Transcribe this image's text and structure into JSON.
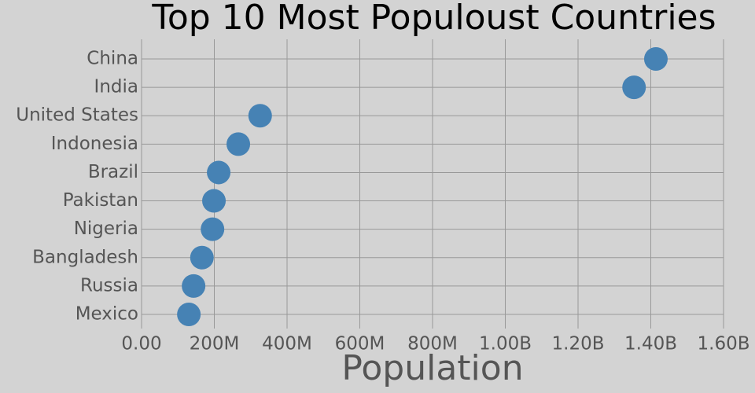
{
  "chart_data": {
    "type": "dot",
    "title": "Top 10 Most Populoust Countries",
    "x_label": "Population",
    "categories": [
      "China",
      "India",
      "United States",
      "Indonesia",
      "Brazil",
      "Pakistan",
      "Nigeria",
      "Bangladesh",
      "Russia",
      "Mexico"
    ],
    "values": [
      1414000000,
      1354000000,
      326000000,
      266000000,
      212000000,
      199000000,
      195000000,
      166000000,
      143000000,
      130000000
    ],
    "color": "#4682b4",
    "xlim": [
      0,
      1600000000
    ],
    "xticks": [
      {
        "value": 0,
        "label": "0.00"
      },
      {
        "value": 200000000,
        "label": "200M"
      },
      {
        "value": 400000000,
        "label": "400M"
      },
      {
        "value": 600000000,
        "label": "600M"
      },
      {
        "value": 800000000,
        "label": "800M"
      },
      {
        "value": 1000000000,
        "label": "1.00B"
      },
      {
        "value": 1200000000,
        "label": "1.20B"
      },
      {
        "value": 1400000000,
        "label": "1.40B"
      },
      {
        "value": 1600000000,
        "label": "1.60B"
      }
    ],
    "grid": true
  }
}
